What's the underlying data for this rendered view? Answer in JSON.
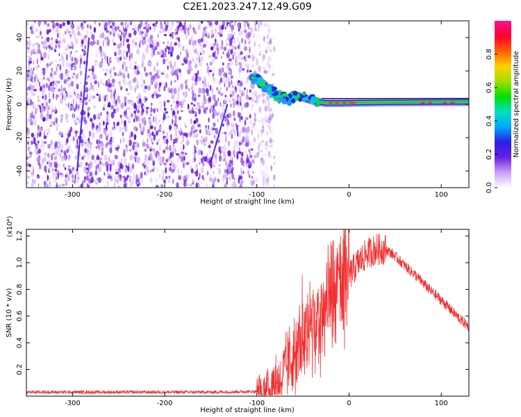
{
  "chart_data": [
    {
      "type": "heatmap",
      "title": "C2E1.2023.247.12.49.G09",
      "xlabel": "Height of straight line (km)",
      "ylabel": "Frequency (Hz)",
      "xlim": [
        -350,
        130
      ],
      "ylim": [
        -50,
        50
      ],
      "xticks": [
        -300,
        -200,
        -100,
        0,
        100
      ],
      "yticks": [
        -40,
        -20,
        0,
        20,
        40
      ],
      "colorbar": {
        "label": "Normalized spectral amplitude",
        "range": [
          0,
          1
        ],
        "ticks": [
          0.0,
          0.2,
          0.4,
          0.6,
          0.8
        ],
        "colors": [
          "#ffffff",
          "#c8a0f5",
          "#6a1fe0",
          "#2a1ee8",
          "#00a8ff",
          "#00e0c0",
          "#00e000",
          "#a0e000",
          "#ffd000",
          "#ff6000",
          "#ff0030",
          "#ff1090"
        ]
      },
      "features": {
        "noise_region_x": [
          -350,
          -90
        ],
        "noise_color": "#7a25e6",
        "tone_track": [
          [
            -105,
            16
          ],
          [
            -95,
            13
          ],
          [
            -85,
            8
          ],
          [
            -75,
            4
          ],
          [
            -65,
            3
          ],
          [
            -55,
            5
          ],
          [
            -45,
            3
          ],
          [
            -35,
            1.5
          ],
          [
            -25,
            0.8
          ],
          [
            -10,
            0.8
          ],
          [
            10,
            1
          ],
          [
            40,
            1.2
          ],
          [
            80,
            1.3
          ],
          [
            130,
            1.4
          ]
        ]
      }
    },
    {
      "type": "line",
      "xlabel": "Height of straight line (km)",
      "ylabel": "SNR (10 * v/v)",
      "y_multiplier": "(x10⁴)",
      "xlim": [
        -350,
        130
      ],
      "ylim": [
        0,
        1.25
      ],
      "xticks": [
        -300,
        -200,
        -100,
        0,
        100
      ],
      "yticks": [
        0.2,
        0.4,
        0.6,
        0.8,
        1.0,
        1.2
      ],
      "series_color": "#f03030",
      "envelope": [
        [
          -350,
          0.03
        ],
        [
          -150,
          0.03
        ],
        [
          -100,
          0.035
        ],
        [
          -90,
          0.05
        ],
        [
          -80,
          0.1
        ],
        [
          -70,
          0.2
        ],
        [
          -60,
          0.3
        ],
        [
          -50,
          0.4
        ],
        [
          -40,
          0.5
        ],
        [
          -30,
          0.55
        ],
        [
          -20,
          0.65
        ],
        [
          -10,
          0.8
        ],
        [
          0,
          0.9
        ],
        [
          10,
          1.0
        ],
        [
          20,
          1.07
        ],
        [
          30,
          1.1
        ],
        [
          40,
          1.1
        ],
        [
          50,
          1.05
        ],
        [
          60,
          0.98
        ],
        [
          70,
          0.92
        ],
        [
          80,
          0.85
        ],
        [
          90,
          0.78
        ],
        [
          100,
          0.72
        ],
        [
          110,
          0.65
        ],
        [
          120,
          0.58
        ],
        [
          130,
          0.52
        ]
      ]
    }
  ]
}
